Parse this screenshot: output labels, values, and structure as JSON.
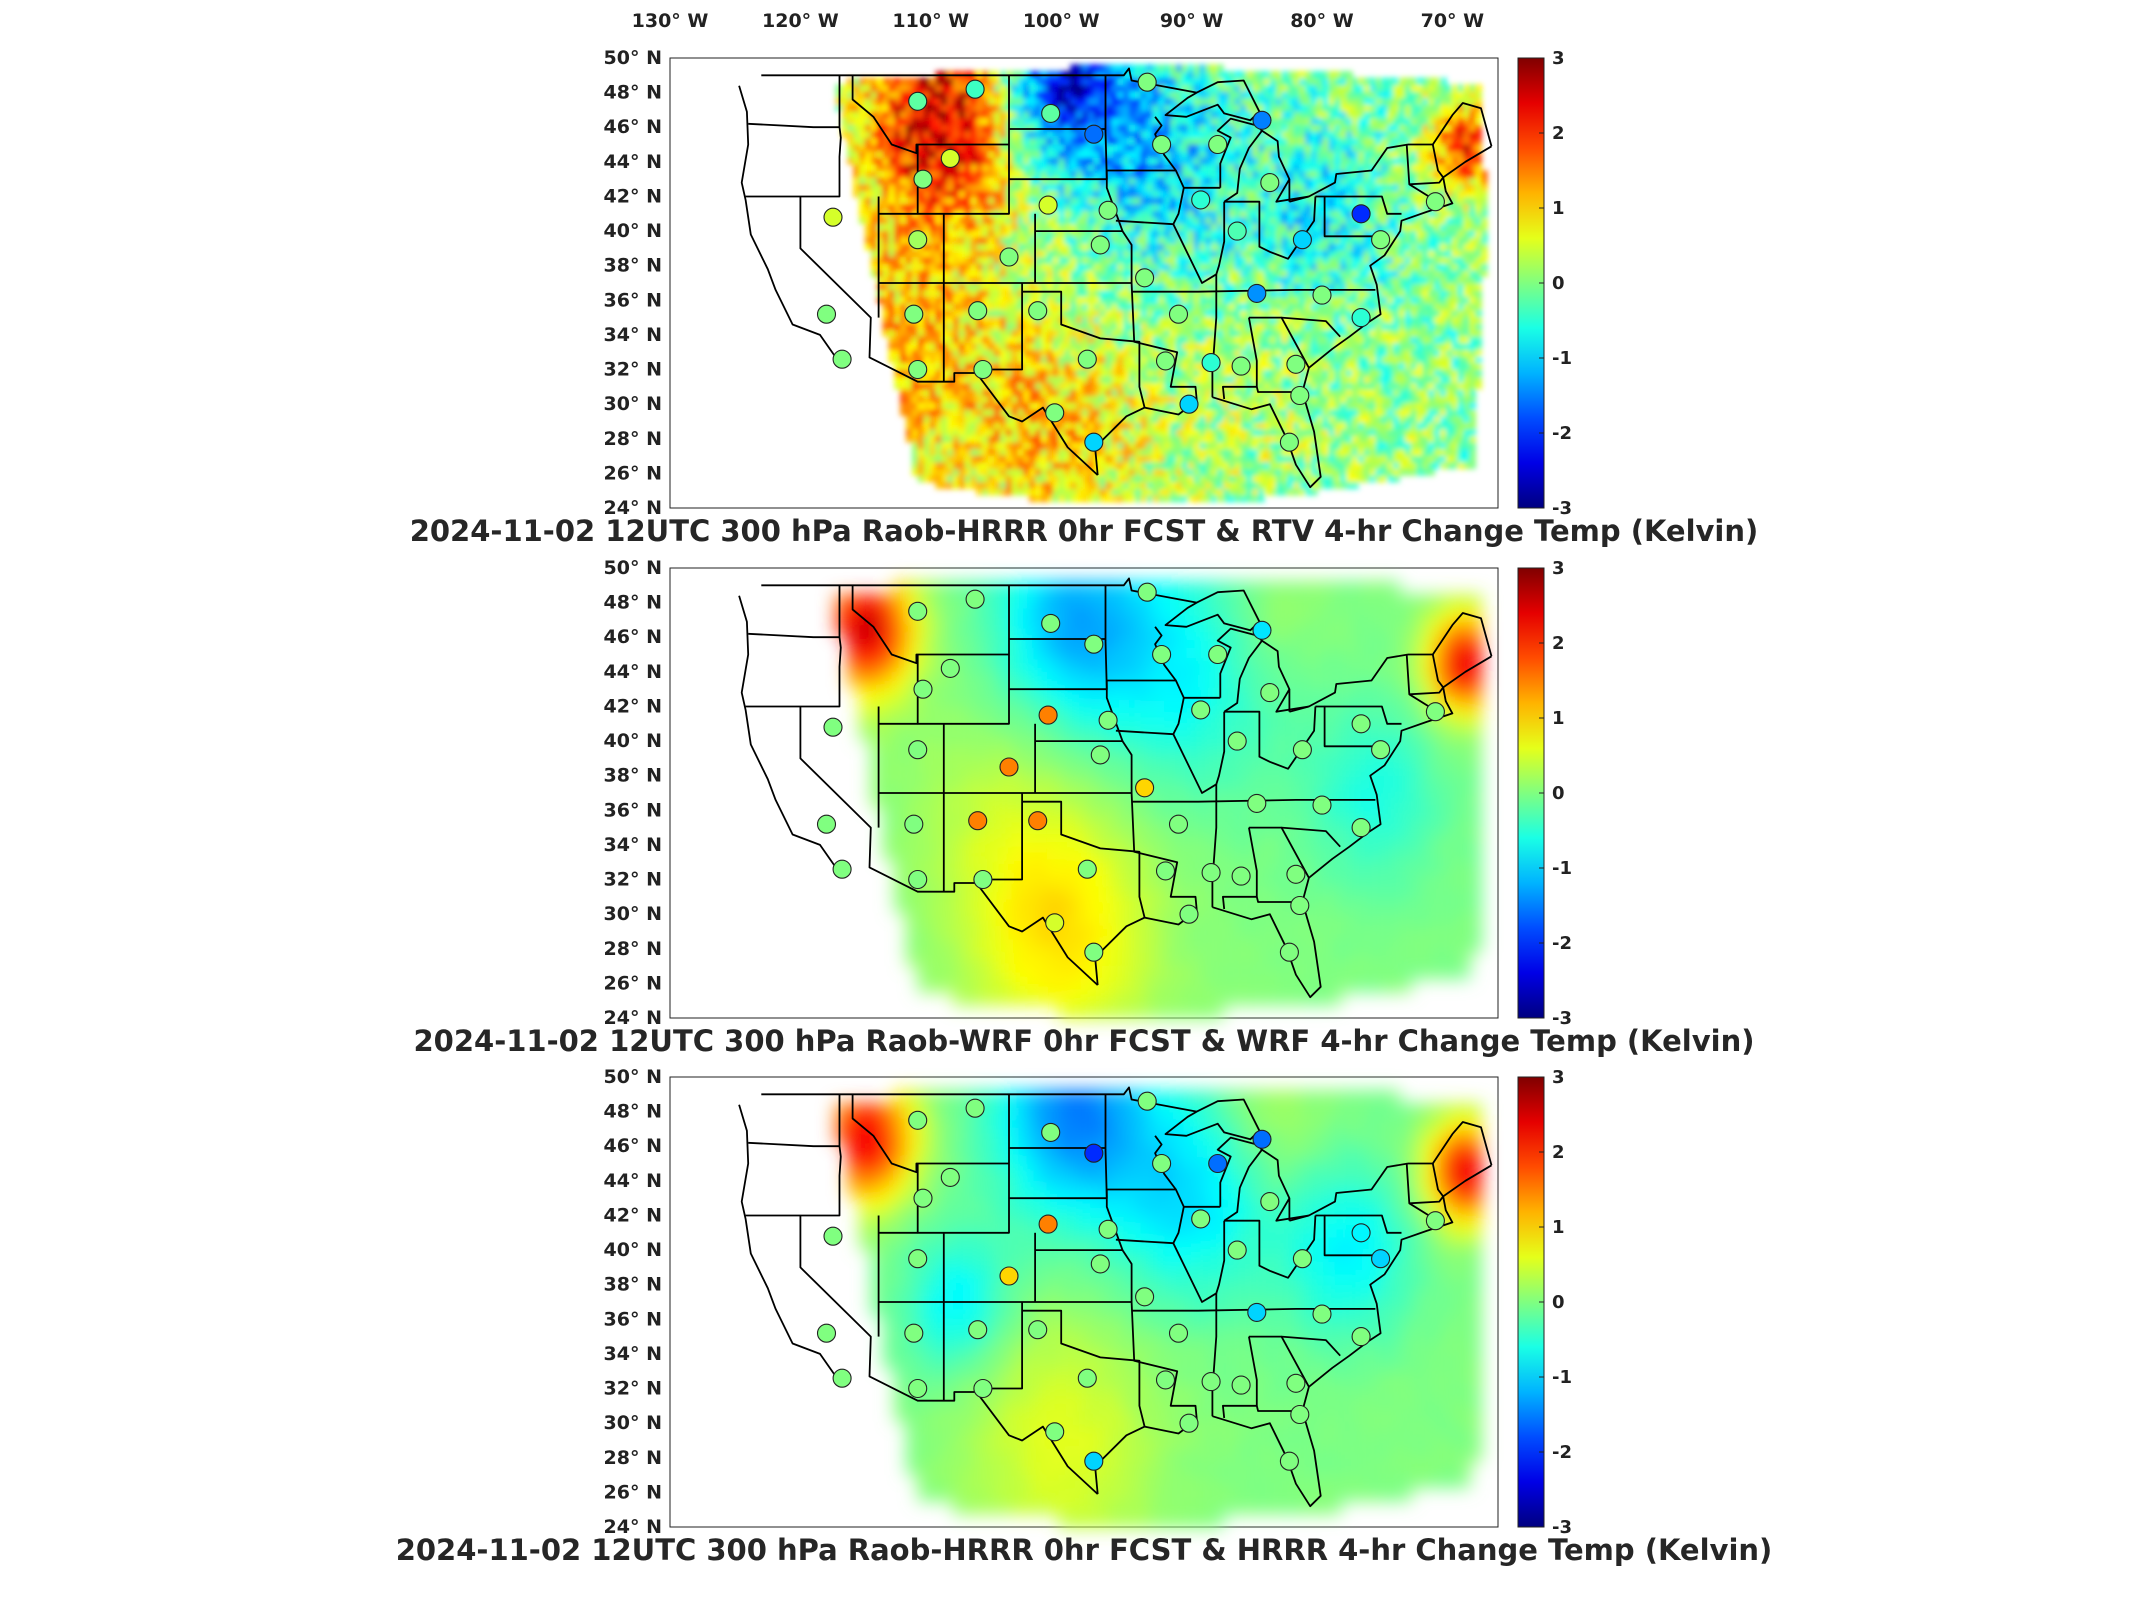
{
  "figure": {
    "longitude_ticks": [
      "130",
      "120",
      "110",
      "100",
      "90",
      "80",
      "70"
    ],
    "longitude_hemisphere": "W",
    "latitude_ticks": [
      "50",
      "48",
      "46",
      "44",
      "42",
      "40",
      "38",
      "36",
      "34",
      "32",
      "30",
      "28",
      "26",
      "24"
    ],
    "latitude_hemisphere": "N",
    "degree_symbol": "°",
    "colorbar_ticks": [
      "3",
      "2",
      "1",
      "0",
      "-1",
      "-2",
      "-3"
    ],
    "colormap": "jet",
    "colormap_stops": [
      "#00008f",
      "#0000ff",
      "#00ffff",
      "#ffff00",
      "#ff0000",
      "#800000"
    ],
    "map_extent": {
      "lon_min": -130,
      "lon_max": -66.5,
      "lat_min": 24,
      "lat_max": 50
    }
  },
  "panels": [
    {
      "title": "2024-11-02 12UTC 300 hPa Raob-HRRR 0hr FCST & RTV 4-hr Change Temp (Kelvin)",
      "field_style": "noisy"
    },
    {
      "title": "2024-11-02 12UTC 300 hPa Raob-WRF 0hr FCST & WRF 4-hr Change Temp (Kelvin)",
      "field_style": "smooth"
    },
    {
      "title": "2024-11-02 12UTC 300 hPa Raob-HRRR 0hr FCST & HRRR 4-hr Change Temp (Kelvin)",
      "field_style": "smooth"
    }
  ],
  "chart_data": {
    "type": "heatmap",
    "variable": "Temp (Kelvin)",
    "level": "300 hPa",
    "valid_time": "2024-11-02 12UTC",
    "color_range": [
      -3,
      3
    ],
    "axes": {
      "x": {
        "quantity": "longitude",
        "ticks": [
          -130,
          -120,
          -110,
          -100,
          -90,
          -80,
          -70
        ]
      },
      "y": {
        "quantity": "latitude",
        "ticks": [
          24,
          26,
          28,
          30,
          32,
          34,
          36,
          38,
          40,
          42,
          44,
          46,
          48,
          50
        ]
      }
    },
    "raob_stations": [
      {
        "lon": -111.0,
        "lat": 47.5,
        "v": [
          -0.2,
          0.0,
          0.0
        ]
      },
      {
        "lon": -106.6,
        "lat": 48.2,
        "v": [
          -0.4,
          0.0,
          0.0
        ]
      },
      {
        "lon": -100.8,
        "lat": 46.8,
        "v": [
          -0.2,
          0.0,
          0.0
        ]
      },
      {
        "lon": -97.5,
        "lat": 45.6,
        "v": [
          -1.6,
          0.0,
          -2.0
        ]
      },
      {
        "lon": -93.4,
        "lat": 48.6,
        "v": [
          0.0,
          0.0,
          0.0
        ]
      },
      {
        "lon": -108.5,
        "lat": 44.2,
        "v": [
          0.5,
          0.0,
          0.0
        ]
      },
      {
        "lon": -92.3,
        "lat": 45.0,
        "v": [
          0.0,
          0.0,
          0.0
        ]
      },
      {
        "lon": -84.6,
        "lat": 46.4,
        "v": [
          -1.5,
          -0.9,
          -1.6
        ]
      },
      {
        "lon": -88.0,
        "lat": 45.0,
        "v": [
          0.0,
          0.0,
          -1.6
        ]
      },
      {
        "lon": -110.6,
        "lat": 43.0,
        "v": [
          0.0,
          0.0,
          0.0
        ]
      },
      {
        "lon": -101.0,
        "lat": 41.5,
        "v": [
          0.5,
          1.5,
          1.5
        ]
      },
      {
        "lon": -96.4,
        "lat": 41.2,
        "v": [
          0.0,
          0.0,
          0.0
        ]
      },
      {
        "lon": -89.3,
        "lat": 41.8,
        "v": [
          -0.5,
          0.0,
          0.0
        ]
      },
      {
        "lon": -84.0,
        "lat": 42.8,
        "v": [
          0.0,
          0.0,
          0.0
        ]
      },
      {
        "lon": -117.5,
        "lat": 40.8,
        "v": [
          0.5,
          0.0,
          0.0
        ]
      },
      {
        "lon": -111.0,
        "lat": 39.5,
        "v": [
          0.2,
          0.0,
          0.0
        ]
      },
      {
        "lon": -104.0,
        "lat": 38.5,
        "v": [
          0.0,
          1.5,
          1.0
        ]
      },
      {
        "lon": -97.0,
        "lat": 39.2,
        "v": [
          0.0,
          0.0,
          0.0
        ]
      },
      {
        "lon": -86.5,
        "lat": 40.0,
        "v": [
          -0.3,
          0.0,
          0.0
        ]
      },
      {
        "lon": -81.5,
        "lat": 39.5,
        "v": [
          -1.0,
          0.0,
          0.0
        ]
      },
      {
        "lon": -77.0,
        "lat": 41.0,
        "v": [
          -2.0,
          0.0,
          -0.8
        ]
      },
      {
        "lon": -71.3,
        "lat": 41.7,
        "v": [
          0.0,
          0.0,
          0.0
        ]
      },
      {
        "lon": -75.5,
        "lat": 39.5,
        "v": [
          0.0,
          0.0,
          -1.0
        ]
      },
      {
        "lon": -118.0,
        "lat": 35.2,
        "v": [
          0.0,
          0.0,
          0.0
        ]
      },
      {
        "lon": -111.3,
        "lat": 35.2,
        "v": [
          0.0,
          0.0,
          0.0
        ]
      },
      {
        "lon": -106.4,
        "lat": 35.4,
        "v": [
          0.0,
          1.5,
          0.0
        ]
      },
      {
        "lon": -101.8,
        "lat": 35.4,
        "v": [
          0.0,
          1.5,
          0.0
        ]
      },
      {
        "lon": -93.6,
        "lat": 37.3,
        "v": [
          0.0,
          1.0,
          0.0
        ]
      },
      {
        "lon": -91.0,
        "lat": 35.2,
        "v": [
          0.0,
          0.0,
          0.0
        ]
      },
      {
        "lon": -85.0,
        "lat": 36.4,
        "v": [
          -1.4,
          0.0,
          -1.0
        ]
      },
      {
        "lon": -80.0,
        "lat": 36.3,
        "v": [
          0.0,
          0.0,
          0.0
        ]
      },
      {
        "lon": -77.0,
        "lat": 35.0,
        "v": [
          -0.5,
          0.0,
          0.0
        ]
      },
      {
        "lon": -116.8,
        "lat": 32.6,
        "v": [
          0.0,
          0.0,
          0.0
        ]
      },
      {
        "lon": -111.0,
        "lat": 32.0,
        "v": [
          0.0,
          0.0,
          0.0
        ]
      },
      {
        "lon": -106.0,
        "lat": 32.0,
        "v": [
          0.0,
          0.0,
          0.0
        ]
      },
      {
        "lon": -98.0,
        "lat": 32.6,
        "v": [
          0.0,
          0.0,
          0.0
        ]
      },
      {
        "lon": -92.0,
        "lat": 32.5,
        "v": [
          0.0,
          0.0,
          0.0
        ]
      },
      {
        "lon": -88.5,
        "lat": 32.4,
        "v": [
          -0.5,
          0.0,
          0.0
        ]
      },
      {
        "lon": -86.2,
        "lat": 32.2,
        "v": [
          0.0,
          0.0,
          0.0
        ]
      },
      {
        "lon": -82.0,
        "lat": 32.3,
        "v": [
          0.0,
          0.0,
          0.0
        ]
      },
      {
        "lon": -100.5,
        "lat": 29.5,
        "v": [
          0.0,
          0.5,
          0.0
        ]
      },
      {
        "lon": -97.5,
        "lat": 27.8,
        "v": [
          -1.0,
          0.0,
          -1.0
        ]
      },
      {
        "lon": -90.2,
        "lat": 30.0,
        "v": [
          -1.0,
          0.0,
          0.0
        ]
      },
      {
        "lon": -81.7,
        "lat": 30.5,
        "v": [
          0.0,
          0.0,
          0.0
        ]
      },
      {
        "lon": -82.5,
        "lat": 27.8,
        "v": [
          0.0,
          0.0,
          0.0
        ]
      }
    ]
  }
}
